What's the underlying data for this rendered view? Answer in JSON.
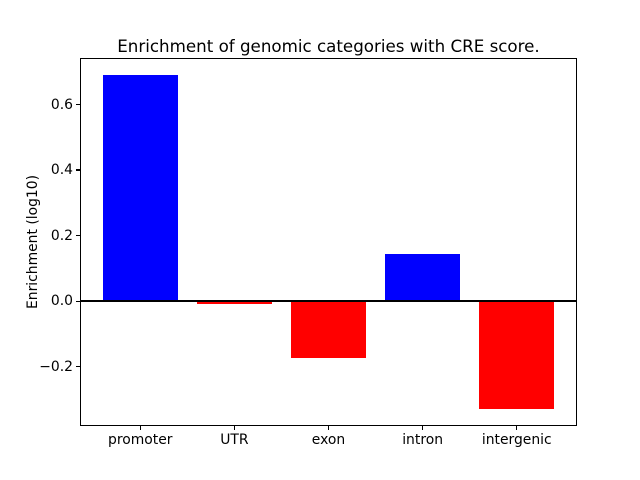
{
  "figure": {
    "background": "#ffffff"
  },
  "chart_data": {
    "type": "bar",
    "title": "Enrichment of genomic categories with CRE score.",
    "xlabel": "",
    "ylabel": "Enrichment (log10)",
    "categories": [
      "promoter",
      "UTR",
      "exon",
      "intron",
      "intergenic"
    ],
    "values": [
      0.69,
      -0.01,
      -0.175,
      0.145,
      -0.33
    ],
    "bar_colors": [
      "#0000ff",
      "#ff0000",
      "#ff0000",
      "#0000ff",
      "#ff0000"
    ],
    "color_rule": {
      "positive": "#0000ff",
      "negative": "#ff0000"
    },
    "ylim": [
      -0.381,
      0.742
    ],
    "yticks": [
      -0.2,
      0.0,
      0.2,
      0.4,
      0.6
    ],
    "ytick_labels": [
      "−0.2",
      "0.0",
      "0.2",
      "0.4",
      "0.6"
    ],
    "grid": false,
    "legend": null,
    "zero_line": {
      "show": true,
      "color": "#000000"
    },
    "axis_color": "#000000",
    "text_color": "#000000"
  }
}
